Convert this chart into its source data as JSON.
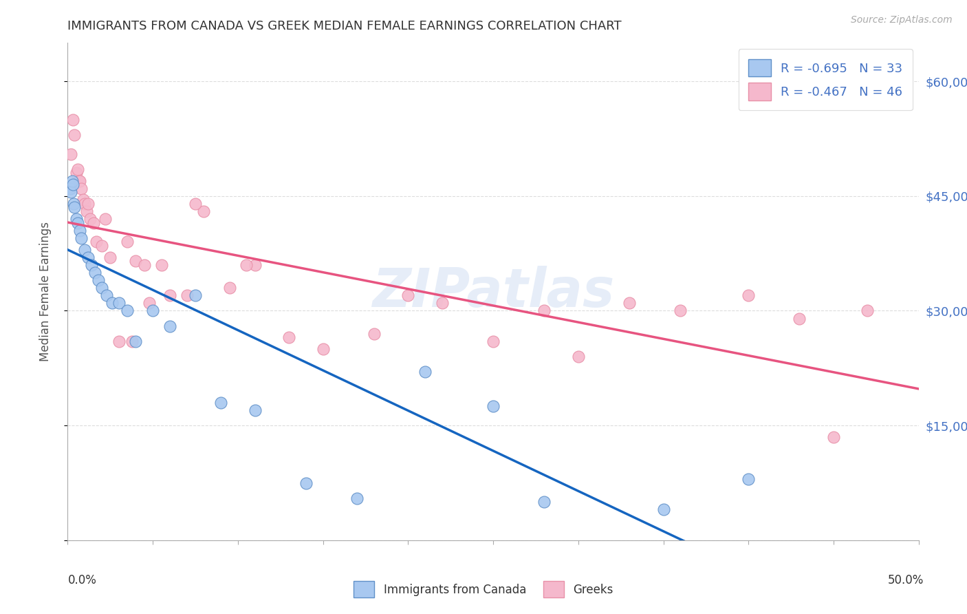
{
  "title": "IMMIGRANTS FROM CANADA VS GREEK MEDIAN FEMALE EARNINGS CORRELATION CHART",
  "source": "Source: ZipAtlas.com",
  "ylabel": "Median Female Earnings",
  "xmin": 0.0,
  "xmax": 50.0,
  "ymin": 0,
  "ymax": 65000,
  "ytick_vals": [
    0,
    15000,
    30000,
    45000,
    60000
  ],
  "ytick_labels": [
    "",
    "$15,000",
    "$30,000",
    "$45,000",
    "$60,000"
  ],
  "r_blue": -0.695,
  "n_blue": 33,
  "r_pink": -0.467,
  "n_pink": 46,
  "blue_scatter_x": [
    0.15,
    0.2,
    0.25,
    0.3,
    0.35,
    0.4,
    0.5,
    0.6,
    0.7,
    0.8,
    1.0,
    1.2,
    1.4,
    1.6,
    1.8,
    2.0,
    2.3,
    2.6,
    3.0,
    3.5,
    4.0,
    5.0,
    6.0,
    7.5,
    9.0,
    11.0,
    14.0,
    17.0,
    21.0,
    25.0,
    28.0,
    35.0,
    40.0
  ],
  "blue_scatter_y": [
    46000,
    45500,
    47000,
    46500,
    44000,
    43500,
    42000,
    41500,
    40500,
    39500,
    38000,
    37000,
    36000,
    35000,
    34000,
    33000,
    32000,
    31000,
    31000,
    30000,
    26000,
    30000,
    28000,
    32000,
    18000,
    17000,
    7500,
    5500,
    22000,
    17500,
    5000,
    4000,
    8000
  ],
  "pink_scatter_x": [
    0.2,
    0.3,
    0.4,
    0.5,
    0.6,
    0.65,
    0.7,
    0.8,
    0.9,
    1.0,
    1.1,
    1.2,
    1.3,
    1.5,
    1.7,
    2.0,
    2.2,
    2.5,
    3.0,
    3.5,
    4.0,
    4.5,
    5.5,
    6.0,
    7.0,
    8.0,
    9.5,
    11.0,
    13.0,
    15.0,
    18.0,
    20.0,
    22.0,
    25.0,
    28.0,
    30.0,
    33.0,
    36.0,
    40.0,
    43.0,
    45.0,
    47.0,
    7.5,
    10.5,
    3.8,
    4.8
  ],
  "pink_scatter_y": [
    50500,
    55000,
    53000,
    48000,
    48500,
    47000,
    47000,
    46000,
    44500,
    44000,
    43000,
    44000,
    42000,
    41500,
    39000,
    38500,
    42000,
    37000,
    26000,
    39000,
    36500,
    36000,
    36000,
    32000,
    32000,
    43000,
    33000,
    36000,
    26500,
    25000,
    27000,
    32000,
    31000,
    26000,
    30000,
    24000,
    31000,
    30000,
    32000,
    29000,
    13500,
    30000,
    44000,
    36000,
    26000,
    31000
  ],
  "blue_line_color": "#1565c0",
  "pink_line_color": "#e75480",
  "scatter_blue_color": "#a8c8f0",
  "scatter_pink_color": "#f5b8cc",
  "scatter_blue_edge": "#6090c8",
  "scatter_pink_edge": "#e890a8",
  "background_color": "#ffffff",
  "grid_color": "#dddddd",
  "title_color": "#333333",
  "axis_label_color": "#555555",
  "right_ytick_color": "#4472c4",
  "watermark_color": "#c8d8f0",
  "watermark_alpha": 0.45,
  "legend_top_text_color": "#4472c4",
  "legend_bottom_labels": [
    "Immigrants from Canada",
    "Greeks"
  ]
}
